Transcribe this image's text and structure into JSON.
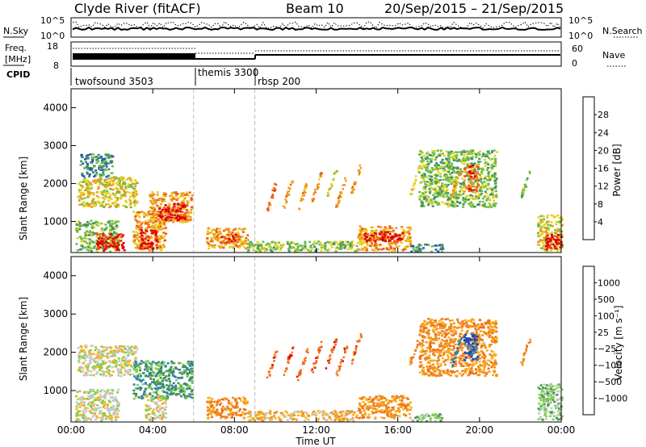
{
  "header": {
    "station": "Clyde River (fitACF)",
    "beam": "Beam 10",
    "date_range": "20/Sep/2015 – 21/Sep/2015"
  },
  "top_panels": {
    "nsky_label": "N.Sky",
    "nsky_ticks": [
      "10^5",
      "10^0"
    ],
    "nsky_right_ticks": [
      "10^5",
      "10^0"
    ],
    "nsearch_label": "N.Search",
    "freq_label_1": "Freq.",
    "freq_label_2": "[MHz]",
    "freq_ticks": [
      "18",
      "8"
    ],
    "nave_ticks": [
      "60",
      "0"
    ],
    "nave_label": "Nave",
    "cpid_label": "CPID",
    "cpid_segments": [
      {
        "name": "twofsound 3503",
        "start": 0,
        "end": 6
      },
      {
        "name": "themis 3300",
        "start": 6,
        "end": 9
      },
      {
        "name": "rbsp 200",
        "start": 9,
        "end": 24
      }
    ]
  },
  "chart_data": [
    {
      "type": "heatmap",
      "title": "",
      "xlabel": "Time UT",
      "ylabel": "Slant Range [km]",
      "xlim": [
        0,
        24
      ],
      "ylim": [
        180,
        4500
      ],
      "x_ticks": [
        "00:00",
        "04:00",
        "08:00",
        "12:00",
        "16:00",
        "20:00",
        "00:00"
      ],
      "y_ticks": [
        "1000",
        "2000",
        "3000",
        "4000"
      ],
      "colorbar": {
        "label": "Power [dB]",
        "ticks": [
          "4",
          "8",
          "12",
          "16",
          "20",
          "24",
          "28"
        ],
        "colors": [
          "#0000ff",
          "#2a55b5",
          "#3f8f6b",
          "#6fbe45",
          "#e4d21f",
          "#f29a1a",
          "#ef5a14",
          "#e00000"
        ]
      },
      "regions": [
        {
          "t0": 0.2,
          "t1": 2.3,
          "r0": 230,
          "r1": 1050,
          "level": 3
        },
        {
          "t0": 1.2,
          "t1": 2.6,
          "r0": 250,
          "r1": 700,
          "level": 7
        },
        {
          "t0": 3.0,
          "t1": 4.6,
          "r0": 250,
          "r1": 1300,
          "level": 5
        },
        {
          "t0": 3.3,
          "t1": 4.2,
          "r0": 300,
          "r1": 800,
          "level": 7
        },
        {
          "t0": 3.8,
          "t1": 5.9,
          "r0": 1000,
          "r1": 1800,
          "level": 5
        },
        {
          "t0": 4.2,
          "t1": 5.6,
          "r0": 1050,
          "r1": 1500,
          "level": 7
        },
        {
          "t0": 0.3,
          "t1": 3.2,
          "r0": 1400,
          "r1": 2200,
          "level": 4
        },
        {
          "t0": 0.4,
          "t1": 2.0,
          "r0": 2200,
          "r1": 2800,
          "level": 2
        },
        {
          "t0": 6.6,
          "t1": 8.6,
          "r0": 300,
          "r1": 850,
          "level": 5
        },
        {
          "t0": 7.3,
          "t1": 8.2,
          "r0": 450,
          "r1": 700,
          "level": 6
        },
        {
          "t0": 8.6,
          "t1": 14.0,
          "r0": 230,
          "r1": 500,
          "level": 3
        },
        {
          "t0": 14.0,
          "t1": 16.6,
          "r0": 250,
          "r1": 900,
          "level": 5
        },
        {
          "t0": 14.3,
          "t1": 16.2,
          "r0": 500,
          "r1": 750,
          "level": 7
        },
        {
          "t0": 16.6,
          "t1": 18.2,
          "r0": 220,
          "r1": 420,
          "level": 2
        },
        {
          "t0": 17.0,
          "t1": 20.8,
          "r0": 1400,
          "r1": 2900,
          "level": 3
        },
        {
          "t0": 19.2,
          "t1": 19.9,
          "r0": 1800,
          "r1": 2500,
          "level": 6
        },
        {
          "t0": 22.8,
          "t1": 24.0,
          "r0": 250,
          "r1": 1200,
          "level": 4
        },
        {
          "t0": 23.2,
          "t1": 24.0,
          "r0": 250,
          "r1": 700,
          "level": 7
        }
      ],
      "streaks": [
        {
          "t": 9.8,
          "r": 1700,
          "level": 6
        },
        {
          "t": 10.6,
          "r": 1800,
          "level": 5
        },
        {
          "t": 11.3,
          "r": 1700,
          "level": 5
        },
        {
          "t": 12.0,
          "r": 1900,
          "level": 5
        },
        {
          "t": 12.7,
          "r": 2000,
          "level": 4
        },
        {
          "t": 13.2,
          "r": 1800,
          "level": 5
        },
        {
          "t": 13.9,
          "r": 2100,
          "level": 5
        },
        {
          "t": 16.8,
          "r": 2100,
          "level": 4
        },
        {
          "t": 18.8,
          "r": 2000,
          "level": 5
        },
        {
          "t": 22.2,
          "r": 2000,
          "level": 3
        }
      ]
    },
    {
      "type": "heatmap",
      "title": "",
      "xlabel": "Time UT",
      "ylabel": "Slant Range [km]",
      "xlim": [
        0,
        24
      ],
      "ylim": [
        180,
        4500
      ],
      "x_ticks": [
        "00:00",
        "04:00",
        "08:00",
        "12:00",
        "16:00",
        "20:00",
        "00:00"
      ],
      "y_ticks": [
        "1000",
        "2000",
        "3000",
        "4000"
      ],
      "colorbar": {
        "label": "Velocity [m s⁻¹]",
        "ticks": [
          "1000",
          "500",
          "100",
          "25",
          "−25",
          "−100",
          "−500",
          "−1000"
        ],
        "colors": [
          "#1f46b5",
          "#2f7fb0",
          "#3f8f5b",
          "#7fd04d",
          "#c7c7c7",
          "#f5b21d",
          "#f28d1c",
          "#ef6b1a",
          "#e20000"
        ]
      },
      "regions": [
        {
          "t0": 0.2,
          "t1": 2.3,
          "r0": 230,
          "r1": 1050,
          "level": 4
        },
        {
          "t0": 0.3,
          "t1": 3.2,
          "r0": 1400,
          "r1": 2200,
          "level": 4
        },
        {
          "t0": 3.0,
          "t1": 5.9,
          "r0": 800,
          "r1": 1800,
          "level": 2
        },
        {
          "t0": 3.6,
          "t1": 4.6,
          "r0": 250,
          "r1": 900,
          "level": 4
        },
        {
          "t0": 6.6,
          "t1": 8.6,
          "r0": 300,
          "r1": 850,
          "level": 6
        },
        {
          "t0": 8.6,
          "t1": 14.0,
          "r0": 230,
          "r1": 500,
          "level": 5
        },
        {
          "t0": 14.0,
          "t1": 16.6,
          "r0": 300,
          "r1": 900,
          "level": 6
        },
        {
          "t0": 16.6,
          "t1": 18.2,
          "r0": 220,
          "r1": 420,
          "level": 3
        },
        {
          "t0": 17.0,
          "t1": 20.8,
          "r0": 1400,
          "r1": 2900,
          "level": 6
        },
        {
          "t0": 19.2,
          "t1": 19.9,
          "r0": 1800,
          "r1": 2500,
          "level": 0
        },
        {
          "t0": 22.8,
          "t1": 24.0,
          "r0": 250,
          "r1": 1200,
          "level": 3
        }
      ],
      "streaks": [
        {
          "t": 9.8,
          "r": 1700,
          "level": 7
        },
        {
          "t": 10.6,
          "r": 1800,
          "level": 7
        },
        {
          "t": 11.3,
          "r": 1700,
          "level": 7
        },
        {
          "t": 12.0,
          "r": 1900,
          "level": 7
        },
        {
          "t": 12.7,
          "r": 2000,
          "level": 7
        },
        {
          "t": 13.2,
          "r": 1800,
          "level": 7
        },
        {
          "t": 13.9,
          "r": 2100,
          "level": 7
        },
        {
          "t": 16.8,
          "r": 2100,
          "level": 6
        },
        {
          "t": 18.8,
          "r": 2000,
          "level": 1
        },
        {
          "t": 22.2,
          "r": 2000,
          "level": 6
        }
      ]
    }
  ]
}
